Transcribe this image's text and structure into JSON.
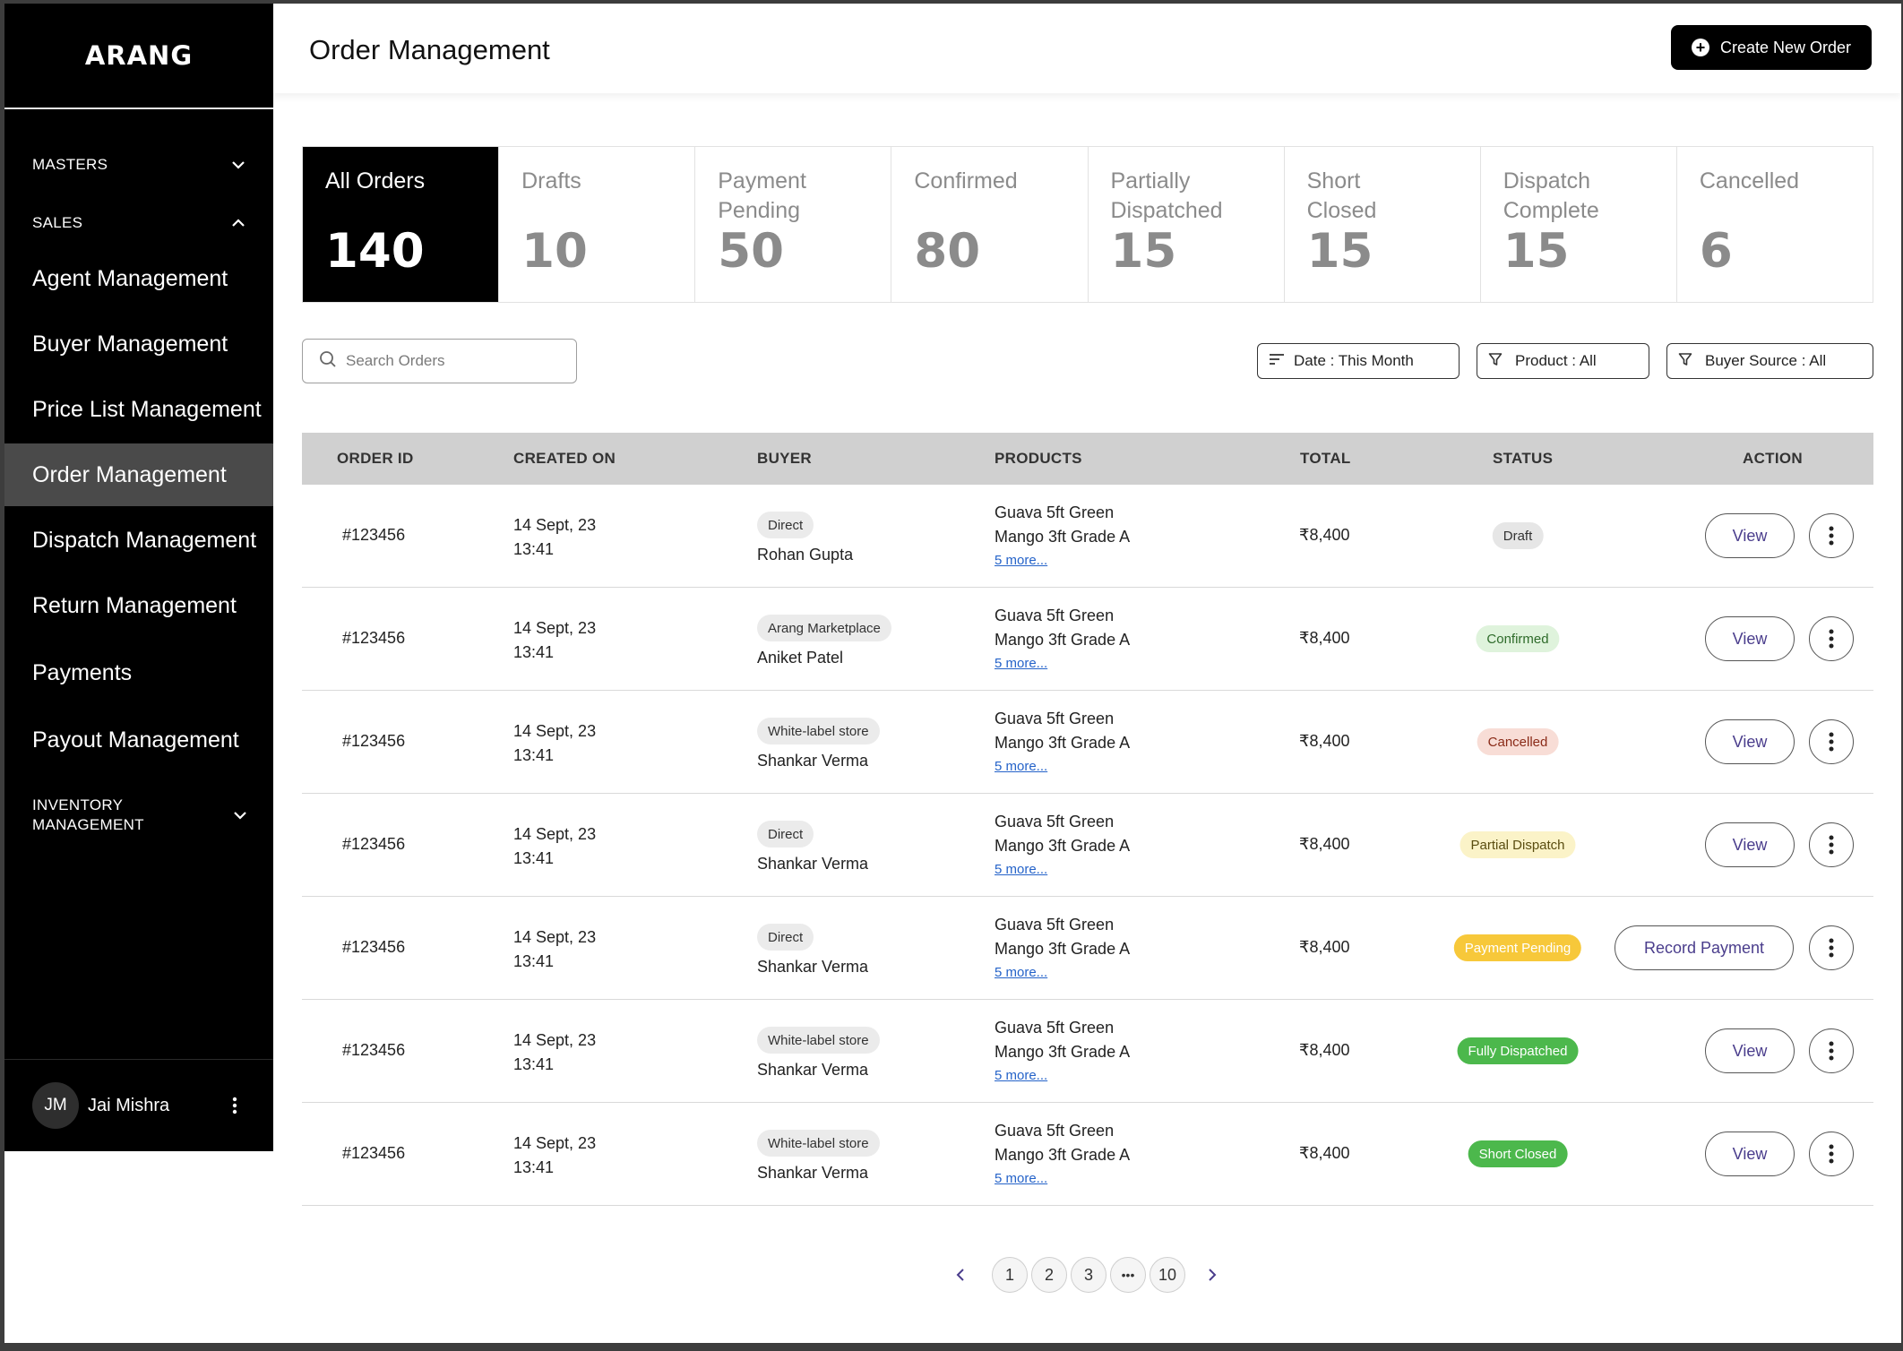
{
  "app": {
    "logo": "ARANG"
  },
  "sidebar": {
    "masters_label": "MASTERS",
    "sales_label": "SALES",
    "items": [
      {
        "label": "Agent Management"
      },
      {
        "label": "Buyer Management"
      },
      {
        "label": "Price List Management"
      },
      {
        "label": "Order Management"
      },
      {
        "label": "Dispatch Management"
      },
      {
        "label": "Return Management"
      },
      {
        "label": "Payments"
      },
      {
        "label": "Payout Management"
      }
    ],
    "active_item": "Order Management",
    "inventory_label_1": "INVENTORY",
    "inventory_label_2": "MANAGEMENT",
    "user": {
      "initials": "JM",
      "name": "Jai Mishra"
    }
  },
  "header": {
    "title": "Order Management",
    "create_button": "Create New Order"
  },
  "tabs": [
    {
      "label": "All Orders",
      "count": "140"
    },
    {
      "label": "Drafts",
      "count": "10"
    },
    {
      "label": "Payment Pending",
      "count": "50"
    },
    {
      "label": "Confirmed",
      "count": "80"
    },
    {
      "label": "Partially Dispatched",
      "count": "15"
    },
    {
      "label": "Short Closed",
      "count": "15"
    },
    {
      "label": "Dispatch Complete",
      "count": "15"
    },
    {
      "label": "Cancelled",
      "count": "6"
    }
  ],
  "filters": {
    "search_placeholder": "Search Orders",
    "date": "Date : This Month",
    "product": "Product :  All",
    "buyer_source": "Buyer Source :  All"
  },
  "table": {
    "columns": [
      "ORDER ID",
      "CREATED ON",
      "BUYER",
      "PRODUCTS",
      "TOTAL",
      "STATUS",
      "ACTION"
    ],
    "rows": [
      {
        "order_id": "#123456",
        "date": "14 Sept, 23",
        "time": "13:41",
        "buyer_source": "Direct",
        "buyer": "Rohan Gupta",
        "product_1": "Guava 5ft Green",
        "product_2": "Mango 3ft Grade A",
        "more": "5 more...",
        "total": "₹8,400",
        "status": "Draft",
        "action": "View"
      },
      {
        "order_id": "#123456",
        "date": "14 Sept, 23",
        "time": "13:41",
        "buyer_source": "Arang Marketplace",
        "buyer": "Aniket Patel",
        "product_1": "Guava 5ft Green",
        "product_2": "Mango 3ft Grade A",
        "more": "5 more...",
        "total": "₹8,400",
        "status": "Confirmed",
        "action": "View"
      },
      {
        "order_id": "#123456",
        "date": "14 Sept, 23",
        "time": "13:41",
        "buyer_source": "White-label store",
        "buyer": "Shankar Verma",
        "product_1": "Guava 5ft Green",
        "product_2": "Mango 3ft Grade A",
        "more": "5 more...",
        "total": "₹8,400",
        "status": "Cancelled",
        "action": "View"
      },
      {
        "order_id": "#123456",
        "date": "14 Sept, 23",
        "time": "13:41",
        "buyer_source": "Direct",
        "buyer": "Shankar Verma",
        "product_1": "Guava 5ft Green",
        "product_2": "Mango 3ft Grade A",
        "more": "5 more...",
        "total": "₹8,400",
        "status": "Partial Dispatch",
        "action": "View"
      },
      {
        "order_id": "#123456",
        "date": "14 Sept, 23",
        "time": "13:41",
        "buyer_source": "Direct",
        "buyer": "Shankar Verma",
        "product_1": "Guava 5ft Green",
        "product_2": "Mango 3ft Grade A",
        "more": "5 more...",
        "total": "₹8,400",
        "status": "Payment Pending",
        "action": "Record Payment"
      },
      {
        "order_id": "#123456",
        "date": "14 Sept, 23",
        "time": "13:41",
        "buyer_source": "White-label store",
        "buyer": "Shankar Verma",
        "product_1": "Guava 5ft Green",
        "product_2": "Mango 3ft Grade A",
        "more": "5 more...",
        "total": "₹8,400",
        "status": "Fully Dispatched",
        "action": "View"
      },
      {
        "order_id": "#123456",
        "date": "14 Sept, 23",
        "time": "13:41",
        "buyer_source": "White-label store",
        "buyer": "Shankar Verma",
        "product_1": "Guava 5ft Green",
        "product_2": "Mango 3ft Grade A",
        "more": "5 more...",
        "total": "₹8,400",
        "status": "Short Closed",
        "action": "View"
      }
    ]
  },
  "status_colors": {
    "Draft": {
      "bg": "#e6e6e6",
      "fg": "#333333"
    },
    "Confirmed": {
      "bg": "#dff3dc",
      "fg": "#2e6b2a"
    },
    "Cancelled": {
      "bg": "#f8ddd6",
      "fg": "#8a2a17"
    },
    "Partial Dispatch": {
      "bg": "#fbf3c8",
      "fg": "#5a4d10"
    },
    "Payment Pending": {
      "bg": "#f7c83a",
      "fg": "#ffffff"
    },
    "Fully Dispatched": {
      "bg": "#4cb84c",
      "fg": "#ffffff"
    },
    "Short Closed": {
      "bg": "#4cb84c",
      "fg": "#ffffff"
    }
  },
  "pagination": {
    "pages": [
      "1",
      "2",
      "3",
      "•••",
      "10"
    ]
  }
}
